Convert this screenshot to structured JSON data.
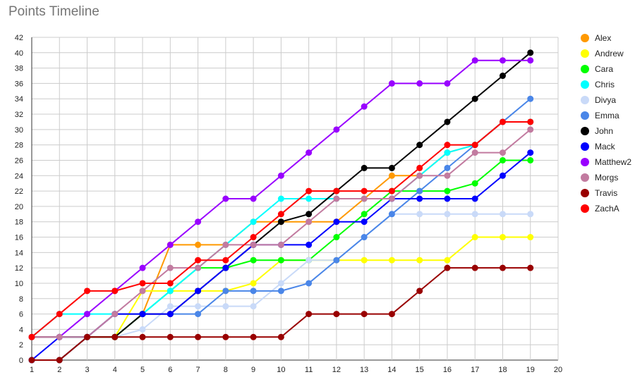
{
  "chart_data": {
    "type": "line",
    "title": "Points Timeline",
    "xlabel": "",
    "ylabel": "",
    "x": [
      1,
      2,
      3,
      4,
      5,
      6,
      7,
      8,
      9,
      10,
      11,
      12,
      13,
      14,
      15,
      16,
      17,
      18,
      19
    ],
    "xlim": [
      1,
      20
    ],
    "ylim": [
      0,
      42
    ],
    "x_ticks": [
      1,
      2,
      3,
      4,
      5,
      6,
      7,
      8,
      9,
      10,
      11,
      12,
      13,
      14,
      15,
      16,
      17,
      18,
      19,
      20
    ],
    "y_ticks": [
      0,
      2,
      4,
      6,
      8,
      10,
      12,
      14,
      16,
      18,
      20,
      22,
      24,
      26,
      28,
      30,
      32,
      34,
      36,
      38,
      40,
      42
    ],
    "grid": true,
    "legend_position": "right",
    "series": [
      {
        "name": "Alex",
        "color": "#ff9900",
        "values": [
          3,
          3,
          3,
          6,
          6,
          15,
          15,
          15,
          18,
          18,
          18,
          18,
          21,
          24,
          24,
          27,
          28,
          31,
          31
        ]
      },
      {
        "name": "Andrew",
        "color": "#ffff00",
        "values": [
          3,
          3,
          3,
          3,
          9,
          9,
          9,
          9,
          10,
          13,
          13,
          13,
          13,
          13,
          13,
          13,
          16,
          16,
          16
        ]
      },
      {
        "name": "Cara",
        "color": "#00ff00",
        "values": [
          3,
          3,
          3,
          3,
          6,
          9,
          12,
          12,
          13,
          13,
          13,
          16,
          19,
          22,
          22,
          22,
          23,
          26,
          26
        ]
      },
      {
        "name": "Chris",
        "color": "#00ffff",
        "values": [
          3,
          6,
          6,
          6,
          6,
          9,
          12,
          15,
          18,
          21,
          21,
          21,
          21,
          21,
          24,
          27,
          28,
          31,
          31
        ]
      },
      {
        "name": "Divya",
        "color": "#c9daf8",
        "values": [
          0,
          0,
          3,
          3,
          4,
          7,
          7,
          7,
          7,
          10,
          13,
          13,
          16,
          19,
          19,
          19,
          19,
          19,
          19
        ]
      },
      {
        "name": "Emma",
        "color": "#4a86e8",
        "values": [
          0,
          0,
          3,
          6,
          6,
          6,
          6,
          9,
          9,
          9,
          10,
          13,
          16,
          19,
          22,
          25,
          28,
          31,
          34
        ]
      },
      {
        "name": "John",
        "color": "#000000",
        "values": [
          0,
          0,
          3,
          3,
          6,
          6,
          9,
          12,
          15,
          18,
          19,
          22,
          25,
          25,
          28,
          31,
          34,
          37,
          40
        ]
      },
      {
        "name": "Mack",
        "color": "#0000ff",
        "values": [
          0,
          3,
          3,
          6,
          6,
          6,
          9,
          12,
          15,
          15,
          15,
          18,
          18,
          21,
          21,
          21,
          21,
          24,
          27
        ]
      },
      {
        "name": "Matthew2",
        "color": "#9900ff",
        "values": [
          3,
          3,
          6,
          9,
          12,
          15,
          18,
          21,
          21,
          24,
          27,
          30,
          33,
          36,
          36,
          36,
          39,
          39,
          39
        ]
      },
      {
        "name": "Morgs",
        "color": "#c27ba0",
        "values": [
          3,
          3,
          3,
          6,
          9,
          12,
          12,
          15,
          15,
          15,
          18,
          21,
          21,
          21,
          24,
          24,
          27,
          27,
          30
        ]
      },
      {
        "name": "Travis",
        "color": "#990000",
        "values": [
          0,
          0,
          3,
          3,
          3,
          3,
          3,
          3,
          3,
          3,
          6,
          6,
          6,
          6,
          9,
          12,
          12,
          12,
          12
        ]
      },
      {
        "name": "ZachA",
        "color": "#ff0000",
        "values": [
          3,
          6,
          9,
          9,
          10,
          10,
          13,
          13,
          16,
          19,
          22,
          22,
          22,
          22,
          25,
          28,
          28,
          31,
          31
        ]
      }
    ]
  }
}
